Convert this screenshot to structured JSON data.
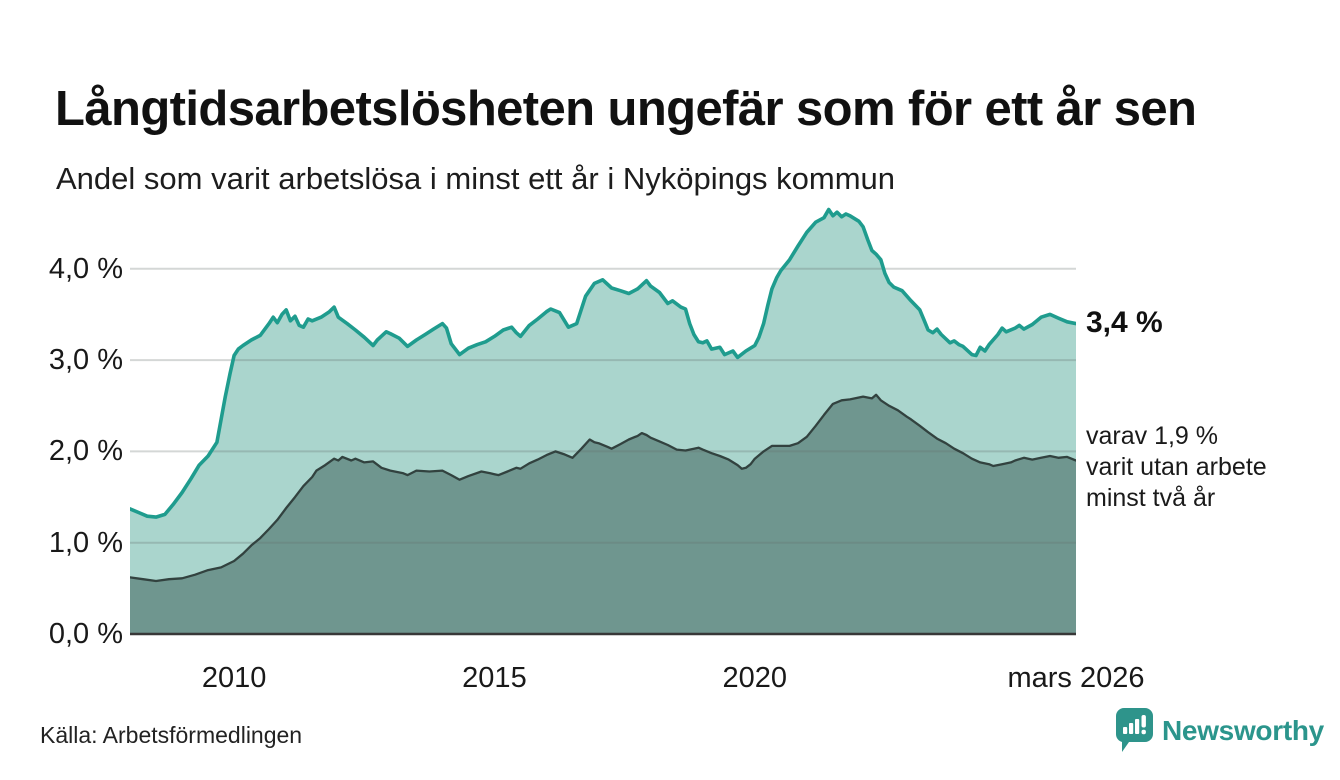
{
  "header": {
    "title": "Långtidsarbetslösheten ungefär som för ett år sen",
    "subtitle": "Andel som varit arbetslösa i minst ett år i Nyköpings kommun"
  },
  "chart_data": {
    "type": "area",
    "title": "Långtidsarbetslösheten ungefär som för ett år sen",
    "subtitle": "Andel som varit arbetslösa i minst ett år i Nyköpings kommun",
    "xlabel": "",
    "ylabel": "",
    "x_domain": [
      2008.0,
      2026.17
    ],
    "ylim": [
      0,
      4.8
    ],
    "grid": "horizontal",
    "y_ticks": [
      {
        "value": 0,
        "label": "0,0 %"
      },
      {
        "value": 1,
        "label": "1,0 %"
      },
      {
        "value": 2,
        "label": "2,0 %"
      },
      {
        "value": 3,
        "label": "3,0 %"
      },
      {
        "value": 4,
        "label": "4,0 %"
      }
    ],
    "x_ticks": [
      {
        "value": 2010,
        "label": "2010"
      },
      {
        "value": 2015,
        "label": "2015"
      },
      {
        "value": 2020,
        "label": "2020"
      },
      {
        "value": 2026.17,
        "label": "mars 2026"
      }
    ],
    "series": [
      {
        "name": "Andel arbetslösa minst ett år",
        "color": "#1f9c8e",
        "fill": "#aad5cd",
        "stroke_width": 3.6,
        "latest_value": 3.4,
        "points": [
          [
            2008.0,
            1.37
          ],
          [
            2008.17,
            1.33
          ],
          [
            2008.33,
            1.29
          ],
          [
            2008.5,
            1.28
          ],
          [
            2008.67,
            1.31
          ],
          [
            2008.83,
            1.42
          ],
          [
            2009.0,
            1.55
          ],
          [
            2009.17,
            1.7
          ],
          [
            2009.33,
            1.85
          ],
          [
            2009.5,
            1.95
          ],
          [
            2009.67,
            2.1
          ],
          [
            2009.75,
            2.35
          ],
          [
            2009.83,
            2.6
          ],
          [
            2009.92,
            2.85
          ],
          [
            2010.0,
            3.05
          ],
          [
            2010.08,
            3.12
          ],
          [
            2010.17,
            3.16
          ],
          [
            2010.33,
            3.22
          ],
          [
            2010.5,
            3.27
          ],
          [
            2010.67,
            3.4
          ],
          [
            2010.75,
            3.47
          ],
          [
            2010.83,
            3.41
          ],
          [
            2010.92,
            3.5
          ],
          [
            2011.0,
            3.55
          ],
          [
            2011.08,
            3.43
          ],
          [
            2011.17,
            3.48
          ],
          [
            2011.25,
            3.38
          ],
          [
            2011.33,
            3.36
          ],
          [
            2011.42,
            3.45
          ],
          [
            2011.5,
            3.43
          ],
          [
            2011.67,
            3.47
          ],
          [
            2011.83,
            3.53
          ],
          [
            2011.92,
            3.58
          ],
          [
            2012.0,
            3.47
          ],
          [
            2012.17,
            3.4
          ],
          [
            2012.33,
            3.33
          ],
          [
            2012.5,
            3.25
          ],
          [
            2012.67,
            3.16
          ],
          [
            2012.75,
            3.22
          ],
          [
            2012.92,
            3.31
          ],
          [
            2013.0,
            3.29
          ],
          [
            2013.17,
            3.24
          ],
          [
            2013.33,
            3.15
          ],
          [
            2013.5,
            3.22
          ],
          [
            2013.67,
            3.28
          ],
          [
            2013.83,
            3.34
          ],
          [
            2014.0,
            3.4
          ],
          [
            2014.08,
            3.35
          ],
          [
            2014.17,
            3.18
          ],
          [
            2014.33,
            3.06
          ],
          [
            2014.5,
            3.13
          ],
          [
            2014.67,
            3.17
          ],
          [
            2014.83,
            3.2
          ],
          [
            2015.0,
            3.26
          ],
          [
            2015.17,
            3.33
          ],
          [
            2015.33,
            3.36
          ],
          [
            2015.42,
            3.3
          ],
          [
            2015.5,
            3.26
          ],
          [
            2015.67,
            3.38
          ],
          [
            2015.83,
            3.45
          ],
          [
            2016.0,
            3.53
          ],
          [
            2016.08,
            3.56
          ],
          [
            2016.25,
            3.52
          ],
          [
            2016.42,
            3.36
          ],
          [
            2016.58,
            3.4
          ],
          [
            2016.75,
            3.7
          ],
          [
            2016.92,
            3.84
          ],
          [
            2017.08,
            3.88
          ],
          [
            2017.25,
            3.79
          ],
          [
            2017.42,
            3.76
          ],
          [
            2017.58,
            3.73
          ],
          [
            2017.75,
            3.78
          ],
          [
            2017.92,
            3.87
          ],
          [
            2018.0,
            3.81
          ],
          [
            2018.17,
            3.74
          ],
          [
            2018.33,
            3.62
          ],
          [
            2018.42,
            3.65
          ],
          [
            2018.58,
            3.58
          ],
          [
            2018.67,
            3.56
          ],
          [
            2018.75,
            3.4
          ],
          [
            2018.83,
            3.28
          ],
          [
            2018.92,
            3.2
          ],
          [
            2019.0,
            3.19
          ],
          [
            2019.08,
            3.21
          ],
          [
            2019.17,
            3.12
          ],
          [
            2019.33,
            3.14
          ],
          [
            2019.42,
            3.06
          ],
          [
            2019.58,
            3.1
          ],
          [
            2019.67,
            3.03
          ],
          [
            2019.83,
            3.1
          ],
          [
            2020.0,
            3.16
          ],
          [
            2020.08,
            3.25
          ],
          [
            2020.17,
            3.4
          ],
          [
            2020.25,
            3.6
          ],
          [
            2020.33,
            3.78
          ],
          [
            2020.42,
            3.9
          ],
          [
            2020.5,
            3.98
          ],
          [
            2020.67,
            4.1
          ],
          [
            2020.83,
            4.25
          ],
          [
            2021.0,
            4.4
          ],
          [
            2021.17,
            4.51
          ],
          [
            2021.33,
            4.56
          ],
          [
            2021.42,
            4.65
          ],
          [
            2021.5,
            4.58
          ],
          [
            2021.58,
            4.62
          ],
          [
            2021.67,
            4.57
          ],
          [
            2021.75,
            4.6
          ],
          [
            2021.83,
            4.58
          ],
          [
            2022.0,
            4.52
          ],
          [
            2022.08,
            4.46
          ],
          [
            2022.17,
            4.32
          ],
          [
            2022.25,
            4.2
          ],
          [
            2022.33,
            4.16
          ],
          [
            2022.42,
            4.1
          ],
          [
            2022.5,
            3.95
          ],
          [
            2022.58,
            3.85
          ],
          [
            2022.67,
            3.8
          ],
          [
            2022.83,
            3.76
          ],
          [
            2023.0,
            3.65
          ],
          [
            2023.17,
            3.55
          ],
          [
            2023.25,
            3.44
          ],
          [
            2023.33,
            3.33
          ],
          [
            2023.42,
            3.3
          ],
          [
            2023.5,
            3.34
          ],
          [
            2023.58,
            3.28
          ],
          [
            2023.75,
            3.19
          ],
          [
            2023.83,
            3.21
          ],
          [
            2023.92,
            3.17
          ],
          [
            2024.0,
            3.15
          ],
          [
            2024.17,
            3.06
          ],
          [
            2024.25,
            3.05
          ],
          [
            2024.33,
            3.14
          ],
          [
            2024.42,
            3.1
          ],
          [
            2024.5,
            3.17
          ],
          [
            2024.67,
            3.28
          ],
          [
            2024.75,
            3.35
          ],
          [
            2024.83,
            3.31
          ],
          [
            2025.0,
            3.35
          ],
          [
            2025.08,
            3.38
          ],
          [
            2025.17,
            3.34
          ],
          [
            2025.33,
            3.39
          ],
          [
            2025.5,
            3.47
          ],
          [
            2025.67,
            3.5
          ],
          [
            2025.83,
            3.46
          ],
          [
            2026.0,
            3.42
          ],
          [
            2026.17,
            3.4
          ]
        ]
      },
      {
        "name": "varav utan arbete minst två år",
        "color": "#32423f",
        "fill": "#6f968f",
        "stroke_width": 2.3,
        "latest_value": 1.9,
        "points": [
          [
            2008.0,
            0.62
          ],
          [
            2008.25,
            0.6
          ],
          [
            2008.5,
            0.58
          ],
          [
            2008.75,
            0.6
          ],
          [
            2009.0,
            0.61
          ],
          [
            2009.25,
            0.65
          ],
          [
            2009.5,
            0.7
          ],
          [
            2009.75,
            0.73
          ],
          [
            2010.0,
            0.8
          ],
          [
            2010.17,
            0.88
          ],
          [
            2010.33,
            0.97
          ],
          [
            2010.5,
            1.05
          ],
          [
            2010.67,
            1.15
          ],
          [
            2010.83,
            1.25
          ],
          [
            2011.0,
            1.38
          ],
          [
            2011.17,
            1.5
          ],
          [
            2011.33,
            1.62
          ],
          [
            2011.5,
            1.72
          ],
          [
            2011.58,
            1.79
          ],
          [
            2011.75,
            1.85
          ],
          [
            2011.92,
            1.92
          ],
          [
            2012.0,
            1.9
          ],
          [
            2012.08,
            1.94
          ],
          [
            2012.25,
            1.9
          ],
          [
            2012.33,
            1.92
          ],
          [
            2012.5,
            1.88
          ],
          [
            2012.67,
            1.89
          ],
          [
            2012.83,
            1.82
          ],
          [
            2013.0,
            1.79
          ],
          [
            2013.25,
            1.76
          ],
          [
            2013.33,
            1.74
          ],
          [
            2013.5,
            1.79
          ],
          [
            2013.75,
            1.78
          ],
          [
            2014.0,
            1.79
          ],
          [
            2014.17,
            1.74
          ],
          [
            2014.33,
            1.69
          ],
          [
            2014.5,
            1.73
          ],
          [
            2014.75,
            1.78
          ],
          [
            2014.92,
            1.76
          ],
          [
            2015.0,
            1.75
          ],
          [
            2015.08,
            1.74
          ],
          [
            2015.25,
            1.78
          ],
          [
            2015.42,
            1.82
          ],
          [
            2015.5,
            1.81
          ],
          [
            2015.67,
            1.87
          ],
          [
            2015.83,
            1.91
          ],
          [
            2016.0,
            1.96
          ],
          [
            2016.17,
            2.0
          ],
          [
            2016.33,
            1.97
          ],
          [
            2016.5,
            1.93
          ],
          [
            2016.67,
            2.03
          ],
          [
            2016.83,
            2.13
          ],
          [
            2016.92,
            2.1
          ],
          [
            2017.0,
            2.09
          ],
          [
            2017.17,
            2.05
          ],
          [
            2017.25,
            2.03
          ],
          [
            2017.42,
            2.08
          ],
          [
            2017.58,
            2.13
          ],
          [
            2017.75,
            2.17
          ],
          [
            2017.83,
            2.2
          ],
          [
            2017.92,
            2.18
          ],
          [
            2018.0,
            2.15
          ],
          [
            2018.17,
            2.11
          ],
          [
            2018.33,
            2.07
          ],
          [
            2018.5,
            2.02
          ],
          [
            2018.67,
            2.01
          ],
          [
            2018.83,
            2.03
          ],
          [
            2018.92,
            2.04
          ],
          [
            2019.0,
            2.02
          ],
          [
            2019.17,
            1.98
          ],
          [
            2019.33,
            1.95
          ],
          [
            2019.5,
            1.91
          ],
          [
            2019.67,
            1.85
          ],
          [
            2019.75,
            1.81
          ],
          [
            2019.83,
            1.82
          ],
          [
            2019.92,
            1.86
          ],
          [
            2020.0,
            1.92
          ],
          [
            2020.17,
            2.0
          ],
          [
            2020.33,
            2.06
          ],
          [
            2020.5,
            2.06
          ],
          [
            2020.67,
            2.06
          ],
          [
            2020.83,
            2.09
          ],
          [
            2021.0,
            2.16
          ],
          [
            2021.17,
            2.28
          ],
          [
            2021.33,
            2.4
          ],
          [
            2021.5,
            2.52
          ],
          [
            2021.67,
            2.56
          ],
          [
            2021.83,
            2.57
          ],
          [
            2022.0,
            2.59
          ],
          [
            2022.08,
            2.6
          ],
          [
            2022.25,
            2.58
          ],
          [
            2022.33,
            2.62
          ],
          [
            2022.42,
            2.56
          ],
          [
            2022.58,
            2.5
          ],
          [
            2022.75,
            2.45
          ],
          [
            2022.92,
            2.38
          ],
          [
            2023.0,
            2.35
          ],
          [
            2023.17,
            2.28
          ],
          [
            2023.33,
            2.21
          ],
          [
            2023.5,
            2.14
          ],
          [
            2023.67,
            2.09
          ],
          [
            2023.83,
            2.03
          ],
          [
            2024.0,
            1.98
          ],
          [
            2024.17,
            1.92
          ],
          [
            2024.33,
            1.88
          ],
          [
            2024.5,
            1.86
          ],
          [
            2024.58,
            1.84
          ],
          [
            2024.75,
            1.86
          ],
          [
            2024.92,
            1.88
          ],
          [
            2025.0,
            1.9
          ],
          [
            2025.17,
            1.93
          ],
          [
            2025.33,
            1.91
          ],
          [
            2025.5,
            1.93
          ],
          [
            2025.67,
            1.95
          ],
          [
            2025.83,
            1.93
          ],
          [
            2026.0,
            1.94
          ],
          [
            2026.17,
            1.9
          ]
        ]
      }
    ],
    "annotations": [
      {
        "id": "latest-total",
        "text": "3,4 %",
        "at_value": 3.4
      },
      {
        "id": "breakdown",
        "lines": [
          "varav 1,9 %",
          "varit utan arbete",
          "minst två år"
        ],
        "at_value": 1.9
      }
    ],
    "legend": "none"
  },
  "footer": {
    "source": "Källa: Arbetsförmedlingen",
    "logo_text": "Newsworthy"
  },
  "colors": {
    "line_total": "#1f9c8e",
    "fill_total": "#aad5cd",
    "line_two_years": "#32423f",
    "fill_two_years": "#6f968f",
    "gridline": "#d8dcdb",
    "baseline": "#383838",
    "logo_teal": "#2e948b",
    "logo_text_teal": "#2b958c"
  }
}
